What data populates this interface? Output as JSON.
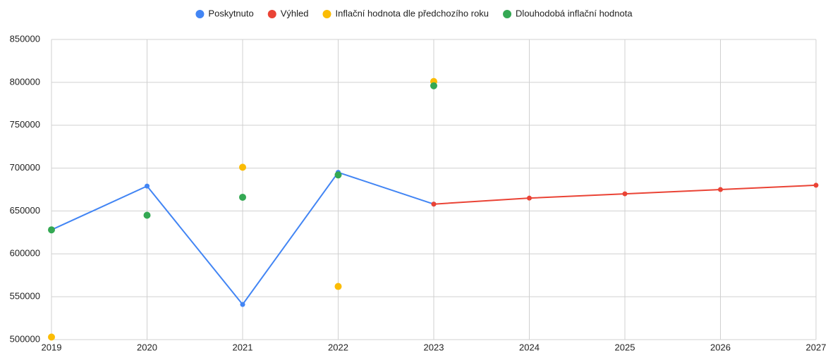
{
  "chart_data": {
    "type": "line",
    "x": [
      2019,
      2020,
      2021,
      2022,
      2023,
      2024,
      2025,
      2026,
      2027
    ],
    "xlim": [
      2019,
      2027
    ],
    "xticks": [
      2019,
      2020,
      2021,
      2022,
      2023,
      2024,
      2025,
      2026,
      2027
    ],
    "ylim": [
      500000,
      850000
    ],
    "yticks": [
      500000,
      550000,
      600000,
      650000,
      700000,
      750000,
      800000,
      850000
    ],
    "grid": true,
    "legend": "top",
    "series": [
      {
        "name": "Poskytnuto",
        "color": "#4285f4",
        "style": "line",
        "values": [
          628000,
          679000,
          541000,
          695000,
          658000,
          null,
          null,
          null,
          null
        ]
      },
      {
        "name": "Výhled",
        "color": "#ea4335",
        "style": "line",
        "values": [
          null,
          null,
          null,
          null,
          658000,
          665000,
          670000,
          675000,
          680000
        ]
      },
      {
        "name": "Inflační hodnota dle předchozího roku",
        "color": "#fbbc04",
        "style": "points",
        "values": [
          503000,
          null,
          701000,
          562000,
          801000,
          null,
          null,
          null,
          null
        ]
      },
      {
        "name": "Dlouhodobá inflační hodnota",
        "color": "#34a853",
        "style": "points",
        "values": [
          628000,
          645000,
          666000,
          692000,
          796000,
          null,
          null,
          null,
          null
        ]
      }
    ]
  }
}
